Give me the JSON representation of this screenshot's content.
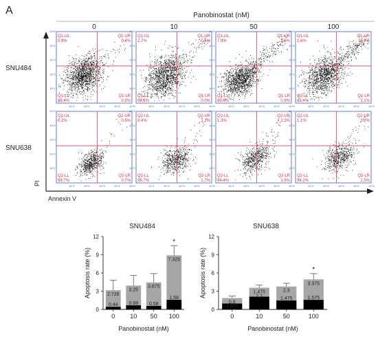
{
  "panel_letter": "A",
  "flow": {
    "treatment_label": "Panobinostat (nM)",
    "doses": [
      "0",
      "10",
      "50",
      "100"
    ],
    "cell_lines": [
      "SNU484",
      "SNU638"
    ],
    "x_axis_label": "Annexin V",
    "y_axis_label": "PI",
    "axis_ticks": [
      "10^0",
      "10^1",
      "10^2",
      "10^3",
      "10^4",
      "10^5"
    ],
    "quadrants": [
      [
        {
          "ul_label": "Q1-UL",
          "ul": "0.9%",
          "ur_label": "Q1-UR",
          "ur": "0.4%",
          "ll_label": "Q1-LL",
          "ll": "98.4%",
          "lr_label": "Q1-LR",
          "lr": "0.3%"
        },
        {
          "ul_label": "Q1-UL",
          "ul": "2.7%",
          "ur_label": "Q1-UR",
          "ur": "0.5%",
          "ll_label": "Q1-LL",
          "ll": "96.8%",
          "lr_label": "Q1-LR",
          "lr": "0.0%"
        },
        {
          "ul_label": "Q1-UL",
          "ul": "7.9%",
          "ur_label": "Q1-UR",
          "ur": "1.6%",
          "ll_label": "Q1-LL",
          "ll": "89.6%",
          "lr_label": "Q1-LR",
          "lr": "0.9%"
        },
        {
          "ul_label": "Q1-UL",
          "ul": "1.6%",
          "ur_label": "Q1-UR",
          "ur": "11.9%",
          "ll_label": "Q1-LL",
          "ll": "85.4%",
          "lr_label": "Q1-LR",
          "lr": "1.1%"
        }
      ],
      [
        {
          "ul_label": "Q2-UL",
          "ul": "0.2%",
          "ur_label": "Q2-UR",
          "ur": "0.5%",
          "ll_label": "Q2-LL",
          "ll": "98.7%",
          "lr_label": "Q2-LR",
          "lr": "0.7%"
        },
        {
          "ul_label": "Q2-UL",
          "ul": "0.4%",
          "ur_label": "Q2-UR",
          "ur": "1.2%",
          "ll_label": "Q2-LL",
          "ll": "96.7%",
          "lr_label": "Q2-LR",
          "lr": "1.7%"
        },
        {
          "ul_label": "Q2-UL",
          "ul": "1.3%",
          "ur_label": "Q2-UR",
          "ur": "2.3%",
          "ll_label": "Q2-LL",
          "ll": "94.4%",
          "lr_label": "Q2-LR",
          "lr": "1.6%"
        },
        {
          "ul_label": "Q2-UL",
          "ul": "1.1%",
          "ur_label": "Q2-UR",
          "ur": "3.2%",
          "ll_label": "Q2-LL",
          "ll": "94.2%",
          "lr_label": "Q2-LR",
          "lr": "1.5%"
        }
      ]
    ]
  },
  "chart_data": [
    {
      "type": "bar",
      "title": "SNU484",
      "xlabel": "Panobinostat (nM)",
      "ylabel": "Apoptosis rate (%)",
      "categories": [
        "0",
        "10",
        "50",
        "100"
      ],
      "ylim": [
        0,
        12
      ],
      "yticks": [
        "0",
        "3",
        "6",
        "9",
        "12"
      ],
      "stacked": true,
      "series": [
        {
          "values": [
            0.44,
            0.68,
            0.58,
            1.58
          ],
          "labels": [
            "0.44",
            "0.68",
            "0.58",
            "1.58"
          ],
          "color": "#000000"
        },
        {
          "values": [
            2.726,
            3.25,
            3.875,
            7.325
          ],
          "labels": [
            "2.726",
            "3.25",
            "3.875",
            "7.325"
          ],
          "color": "#a6a6a6"
        }
      ],
      "error_tops": [
        4.8,
        5.6,
        5.9,
        10.5
      ],
      "significance": [
        "",
        "",
        "",
        "*"
      ],
      "colors": {
        "early": "#000000",
        "late": "#a6a6a6"
      }
    },
    {
      "type": "bar",
      "title": "SNU638",
      "xlabel": "Panobinostat (nM)",
      "ylabel": "Apoptosis rate (%)",
      "categories": [
        "0",
        "10",
        "50",
        "100"
      ],
      "ylim": [
        0,
        12
      ],
      "yticks": [
        "0",
        "3",
        "6",
        "9",
        "12"
      ],
      "stacked": true,
      "series": [
        {
          "values": [
            0.975,
            2.1,
            1.475,
            1.575
          ],
          "labels": [
            "0.975",
            "2.1",
            "1.475",
            "1.575"
          ],
          "color": "#000000"
        },
        {
          "values": [
            0.9,
            1.475,
            2.3,
            3.375
          ],
          "labels": [
            "0.9",
            "1.475",
            "2.3",
            "3.375"
          ],
          "color": "#a6a6a6"
        }
      ],
      "error_tops": [
        2.2,
        4.0,
        4.3,
        5.9
      ],
      "significance": [
        "",
        "",
        "",
        "*"
      ],
      "colors": {
        "early": "#000000",
        "late": "#a6a6a6"
      }
    }
  ]
}
